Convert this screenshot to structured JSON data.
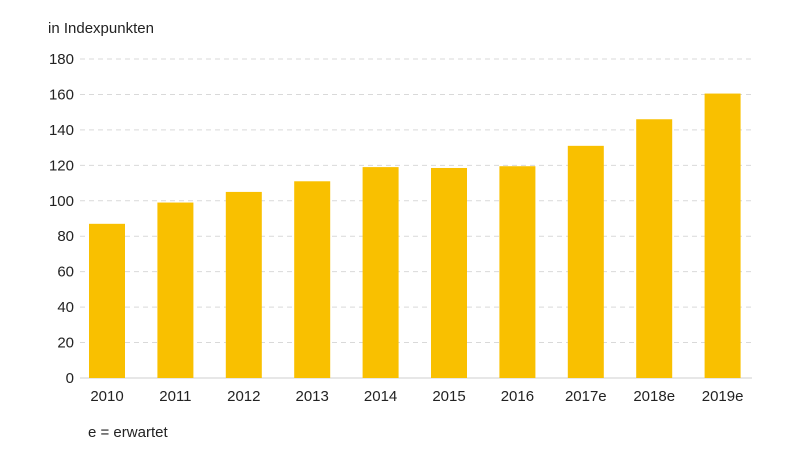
{
  "chart_data": {
    "type": "bar",
    "ylabel": "in Indexpunkten",
    "categories": [
      "2010",
      "2011",
      "2012",
      "2013",
      "2014",
      "2015",
      "2016",
      "2017e",
      "2018e",
      "2019e"
    ],
    "values": [
      87,
      99,
      105,
      111,
      119,
      118.5,
      119.5,
      131,
      146,
      160.5
    ],
    "ylim": [
      0,
      180
    ],
    "yticks": [
      0,
      20,
      40,
      60,
      80,
      100,
      120,
      140,
      160,
      180
    ],
    "grid": true,
    "bar_color": "#f9c000",
    "footnote": "e = erwartet"
  }
}
